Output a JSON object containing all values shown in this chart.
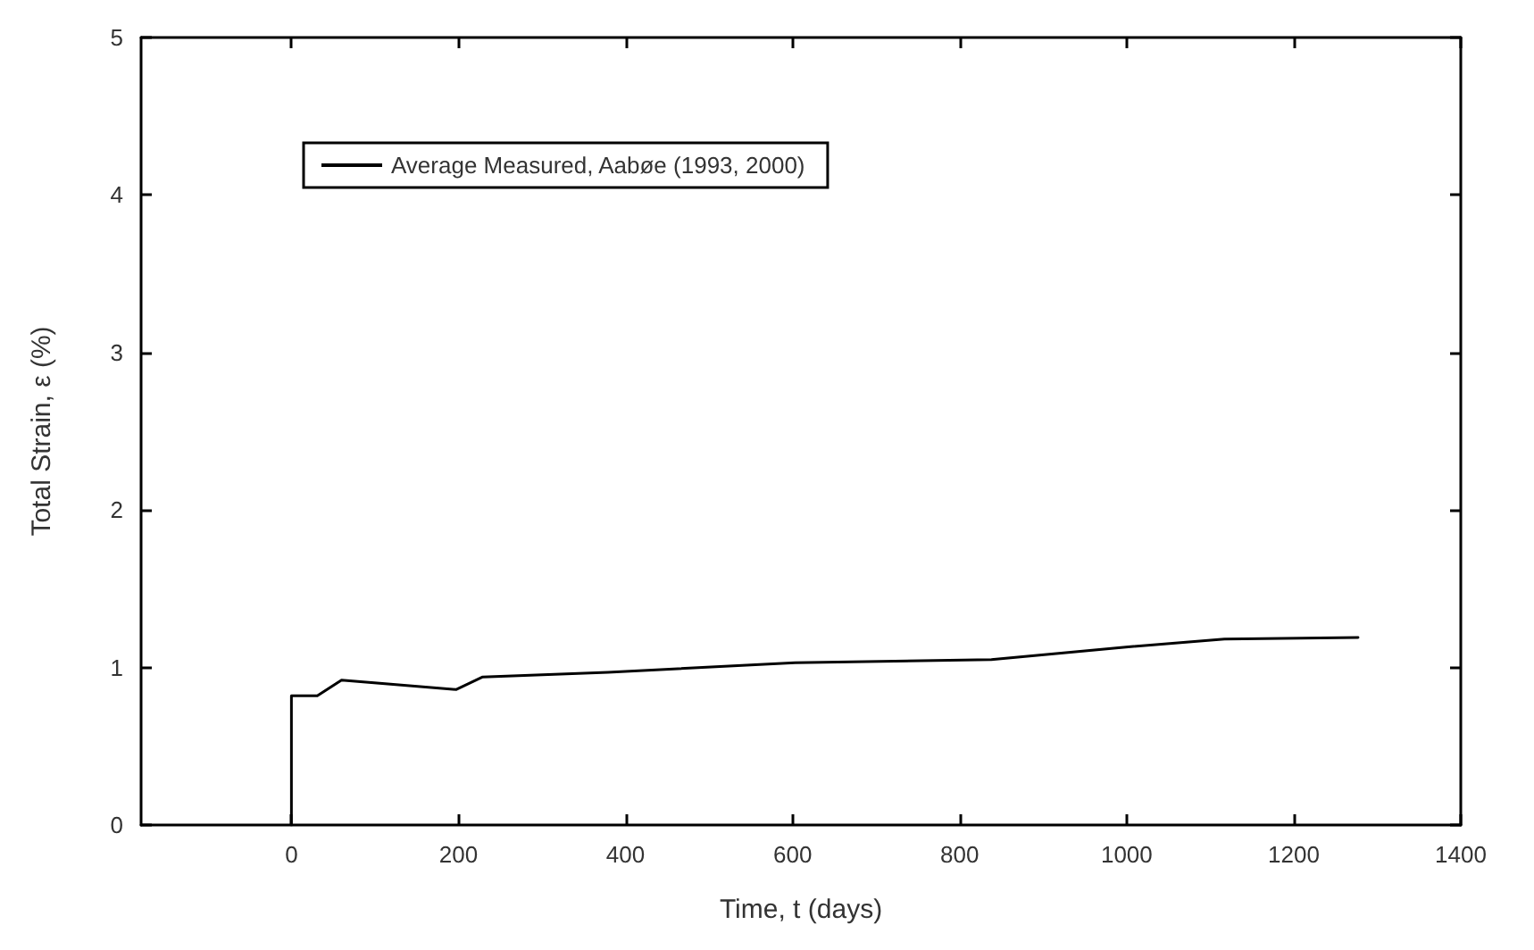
{
  "chart_data": {
    "type": "line",
    "xlabel": "Time, t (days)",
    "ylabel": "Total Strain, ε (%)",
    "xlim": [
      -180,
      1400
    ],
    "xticks": [
      0,
      200,
      400,
      600,
      800,
      1000,
      1200,
      1400
    ],
    "ylim": [
      0,
      5
    ],
    "yticks": [
      0,
      1,
      2,
      3,
      4,
      5
    ],
    "legend": "top left",
    "grid": false,
    "marker": "none",
    "series": [
      {
        "name": "Average Measured, Aabøe (1993, 2000)",
        "color": "#000000",
        "x": [
          0,
          0,
          31,
          60,
          197,
          229,
          379,
          603,
          838,
          999,
          1117,
          1277
        ],
        "values": [
          0,
          0.82,
          0.82,
          0.92,
          0.86,
          0.94,
          0.97,
          1.03,
          1.05,
          1.13,
          1.18,
          1.19
        ]
      }
    ]
  }
}
